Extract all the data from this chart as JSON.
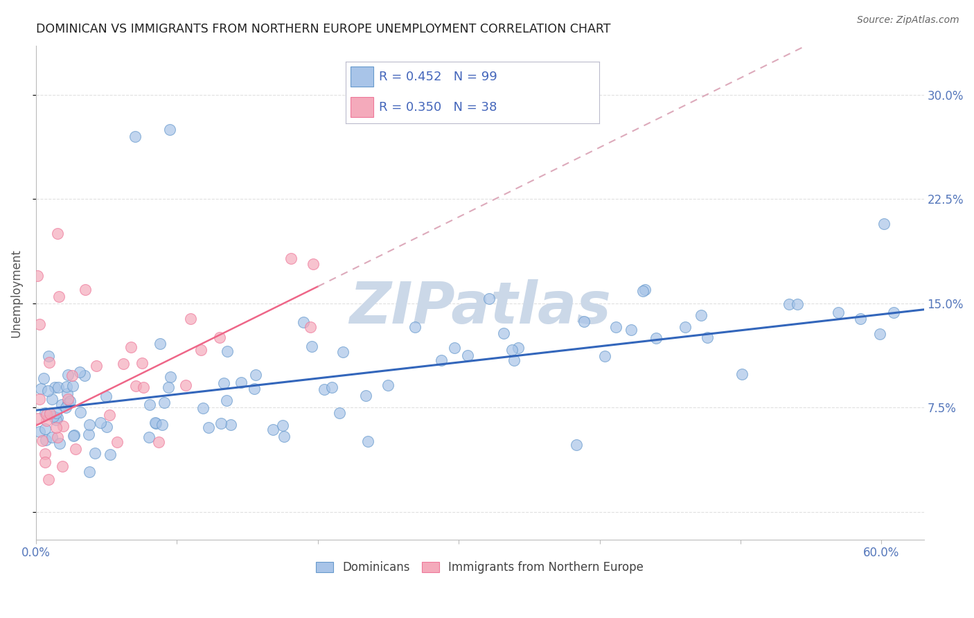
{
  "title": "DOMINICAN VS IMMIGRANTS FROM NORTHERN EUROPE UNEMPLOYMENT CORRELATION CHART",
  "source": "Source: ZipAtlas.com",
  "xlim": [
    0.0,
    0.63
  ],
  "ylim": [
    -0.02,
    0.335
  ],
  "blue_scatter_color": "#A8C4E8",
  "blue_scatter_edge": "#6699CC",
  "pink_scatter_color": "#F4AABB",
  "pink_scatter_edge": "#EE7799",
  "blue_line_color": "#3366BB",
  "pink_line_color": "#EE6688",
  "pink_dashed_color": "#DDAABB",
  "grid_color": "#DDDDDD",
  "title_color": "#222222",
  "axis_tick_color": "#5577BB",
  "ylabel_color": "#555555",
  "background_color": "#FFFFFF",
  "watermark_color": "#CBD8E8",
  "legend_text_color": "#4466BB",
  "legend_border_color": "#BBBBCC",
  "blue_intercept": 0.073,
  "blue_slope": 0.115,
  "pink_intercept": 0.062,
  "pink_slope": 0.5,
  "dom_seed": 77,
  "nor_seed": 42,
  "dominicans_N": 99,
  "northern_europe_N": 38,
  "dominicans_R": 0.452,
  "northern_europe_R": 0.35
}
